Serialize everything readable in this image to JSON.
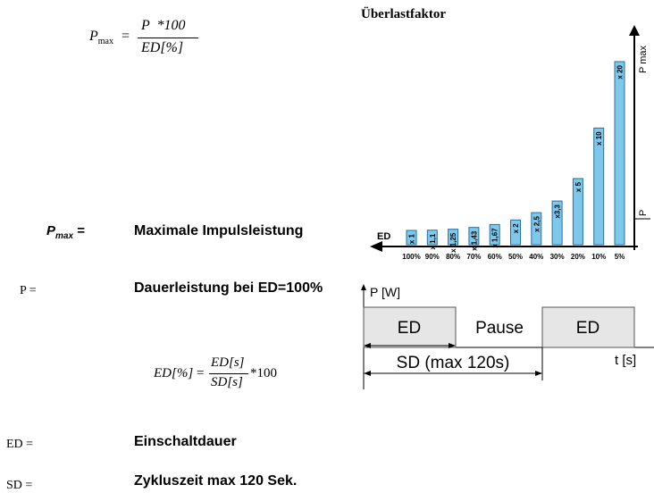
{
  "formula_pmax": {
    "lhs": "P",
    "lhs_sub": "max",
    "eq": "=",
    "numerator": "P  *100",
    "denominator": "ED[%]"
  },
  "formula_ed": {
    "lhs": "ED[%]",
    "eq": "=",
    "numerator": "ED[s]",
    "denominator": "SD[s]",
    "multiplier": "*100"
  },
  "definitions": {
    "pmax": {
      "symbol": "P",
      "symbol_sub": "max",
      "symbol_eq": "=",
      "text": "Maximale Impulsleistung"
    },
    "p": {
      "symbol": "P =",
      "text": "Dauerleistung bei ED=100%"
    },
    "ed": {
      "symbol": "ED =",
      "text": "Einschaltdauer"
    },
    "sd": {
      "symbol": "SD =",
      "text": "Zykluszeit max 120 Sek."
    }
  },
  "chart_data": {
    "type": "bar",
    "title": "Überlastfaktor",
    "categories": [
      "100%",
      "90%",
      "80%",
      "70%",
      "60%",
      "50%",
      "40%",
      "30%",
      "20%",
      "10%",
      "5%"
    ],
    "values": [
      1,
      1.1,
      1.25,
      1.43,
      1.67,
      2,
      2.5,
      3.3,
      5,
      10,
      20
    ],
    "value_labels": [
      "x 1",
      "x 1,1",
      "x 1,25",
      "x 1,43",
      "x 1,67",
      "x 2",
      "x 2,5",
      "x3,3",
      "x 5",
      "x 10",
      "x 20"
    ],
    "xlabel": "ED",
    "ylabel": "P max",
    "y_marker_label": "P",
    "bar_color": "#7ec8ec"
  },
  "timing": {
    "y_axis_label": "P [W]",
    "pulse1_label": "ED",
    "pause_label": "Pause",
    "pulse2_label": "ED",
    "sd_label": "SD (max 120s)",
    "t_axis_label": "t  [s]",
    "pulse_fill": "#e6e6e6"
  }
}
